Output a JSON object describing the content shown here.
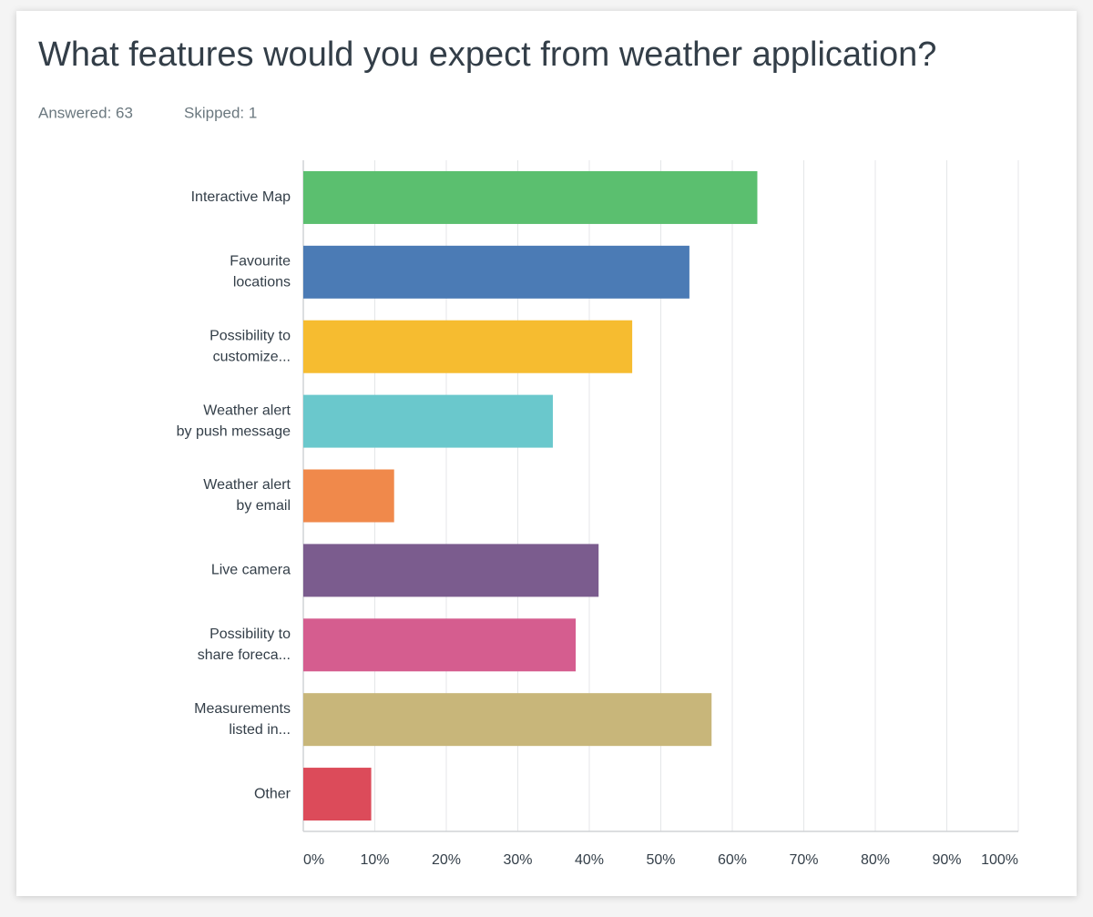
{
  "chart_data": {
    "type": "bar",
    "orientation": "horizontal",
    "title": "What features would you expect from weather application?",
    "answered": "Answered: 63",
    "skipped": "Skipped: 1",
    "categories": [
      [
        "Interactive Map"
      ],
      [
        "Favourite",
        "locations"
      ],
      [
        "Possibility to",
        "customize..."
      ],
      [
        "Weather alert",
        "by push message"
      ],
      [
        "Weather alert",
        "by email"
      ],
      [
        "Live camera"
      ],
      [
        "Possibility to",
        "share foreca..."
      ],
      [
        "Measurements",
        "listed in..."
      ],
      [
        "Other"
      ]
    ],
    "values": [
      63.5,
      54.0,
      46.0,
      34.9,
      12.7,
      41.3,
      38.1,
      57.1,
      9.5
    ],
    "colors": [
      "#5bbf6f",
      "#4b7bb5",
      "#f6bc30",
      "#6ac8cc",
      "#f0894b",
      "#7b5c8e",
      "#d55d8f",
      "#c8b67a",
      "#dc4b5a"
    ],
    "xlim": [
      0,
      100
    ],
    "xticks": [
      {
        "value": 0,
        "label": "0%"
      },
      {
        "value": 10,
        "label": "10%"
      },
      {
        "value": 20,
        "label": "20%"
      },
      {
        "value": 30,
        "label": "30%"
      },
      {
        "value": 40,
        "label": "40%"
      },
      {
        "value": 50,
        "label": "50%"
      },
      {
        "value": 60,
        "label": "60%"
      },
      {
        "value": 70,
        "label": "70%"
      },
      {
        "value": 80,
        "label": "80%"
      },
      {
        "value": 90,
        "label": "90%"
      },
      {
        "value": 100,
        "label": "100%"
      }
    ],
    "grid": true
  }
}
